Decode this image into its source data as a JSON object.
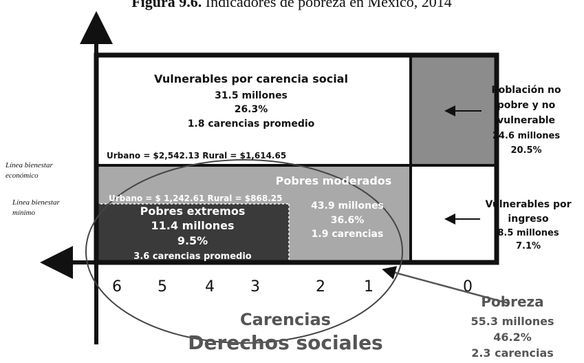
{
  "title": {
    "label": "Figura 9.6.",
    "text": "Indicadores de pobreza en México, 2014"
  },
  "boxes": {
    "vulnerables_carencia": {
      "lines": [
        "Vulnerables por carencia social",
        "31.5 millones",
        "26.3%",
        "1.8 carencias promedio"
      ]
    },
    "linea_economico": {
      "text": "Urbano = $2,542.13   Rural = $1,614.65",
      "label": [
        "Línea bienestar",
        "económico"
      ]
    },
    "pobres_moderados": {
      "title": "Pobres moderados",
      "lines": [
        "43.9 millones",
        "36.6%",
        "1.9 carencias"
      ]
    },
    "linea_minimo": {
      "text": "Urbano = $ 1,242.61  Rural = $868.25",
      "label": [
        "Línea bienestar",
        "mínimo"
      ]
    },
    "pobres_extremos": {
      "lines": [
        "Pobres extremos",
        "11.4 millones",
        "9.5%",
        "3.6 carencias promedio"
      ]
    },
    "no_pobre": {
      "lines": [
        "Población no",
        "pobre y no",
        "vulnerable",
        "24.6 millones",
        "20.5%"
      ]
    },
    "vulnerables_ingreso": {
      "lines": [
        "Vulnerables por",
        "ingreso",
        "8.5 millones",
        "7.1%"
      ]
    },
    "pobreza": {
      "lines": [
        "Pobreza",
        "55.3 millones",
        "46.2%",
        "2.3 carencias"
      ]
    }
  },
  "axis": {
    "ticks": [
      "6",
      "5",
      "4",
      "3",
      "2",
      "1",
      "0"
    ],
    "label": "Carencias",
    "title": "Derechos sociales"
  }
}
